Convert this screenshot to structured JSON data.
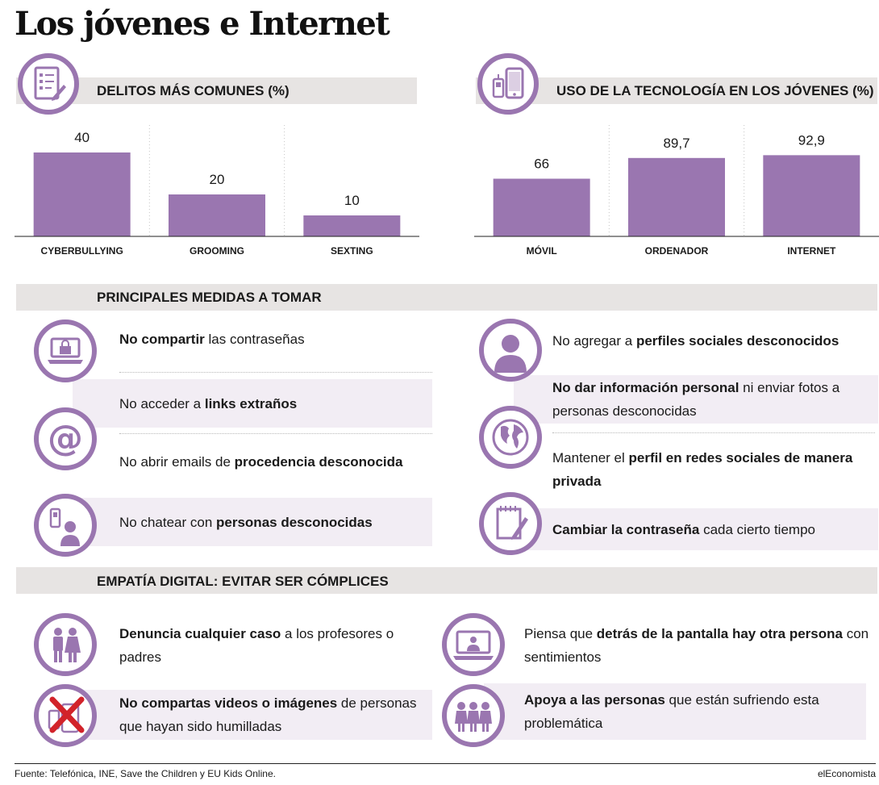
{
  "title": "Los jóvenes e Internet",
  "accent_color": "#9a76b0",
  "band_color": "#e7e4e3",
  "shade_color": "#f2edf4",
  "sections": {
    "delitos": "DELITOS MÁS COMUNES (%)",
    "uso": "USO DE LA TECNOLOGÍA EN LOS JÓVENES (%)",
    "medidas": "PRINCIPALES MEDIDAS A TOMAR",
    "empatia": "EMPATÍA DIGITAL: EVITAR SER CÓMPLICES"
  },
  "chart_data": [
    {
      "type": "bar",
      "title": "DELITOS MÁS COMUNES (%)",
      "categories": [
        "CYBERBULLYING",
        "GROOMING",
        "SEXTING"
      ],
      "values": [
        40,
        20,
        10
      ],
      "value_labels": [
        "40",
        "20",
        "10"
      ],
      "ylim": [
        0,
        50
      ],
      "grid": false
    },
    {
      "type": "bar",
      "title": "USO DE LA TECNOLOGÍA EN LOS JÓVENES (%)",
      "categories": [
        "MÓVIL",
        "ORDENADOR",
        "INTERNET"
      ],
      "values": [
        66,
        89.7,
        92.9
      ],
      "value_labels": [
        "66",
        "89,7",
        "92,9"
      ],
      "ylim": [
        0,
        120
      ],
      "grid": false
    }
  ],
  "medidas": {
    "left": [
      {
        "parts": [
          {
            "b": "No compartir"
          },
          {
            "t": " las contraseñas"
          }
        ]
      },
      {
        "parts": [
          {
            "t": "No acceder a "
          },
          {
            "b": "links extraños"
          }
        ]
      },
      {
        "parts": [
          {
            "t": "No abrir emails de "
          },
          {
            "b": "procedencia desconocida"
          }
        ]
      },
      {
        "parts": [
          {
            "t": "No chatear con "
          },
          {
            "b": "personas desconocidas"
          }
        ]
      }
    ],
    "right": [
      {
        "parts": [
          {
            "t": "No agregar a "
          },
          {
            "b": "perfiles sociales desconocidos"
          }
        ]
      },
      {
        "parts": [
          {
            "b": "No dar información personal"
          },
          {
            "t": " ni enviar fotos a personas desconocidas"
          }
        ]
      },
      {
        "parts": [
          {
            "t": "Mantener el "
          },
          {
            "b": "perfil en redes sociales de manera privada"
          }
        ]
      },
      {
        "parts": [
          {
            "b": "Cambiar la contraseña"
          },
          {
            "t": " cada cierto tiempo"
          }
        ]
      }
    ]
  },
  "empatia": {
    "left": [
      {
        "parts": [
          {
            "b": "Denuncia cualquier caso"
          },
          {
            "t": " a los profesores o padres"
          }
        ]
      },
      {
        "parts": [
          {
            "b": "No compartas videos o imágenes"
          },
          {
            "t": " de personas que hayan sido humilladas"
          }
        ]
      }
    ],
    "right": [
      {
        "parts": [
          {
            "t": "Piensa que "
          },
          {
            "b": "detrás de la pantalla hay otra persona"
          },
          {
            "t": " con sentimientos"
          }
        ]
      },
      {
        "parts": [
          {
            "b": "Apoya a las personas"
          },
          {
            "t": " que están sufriendo esta problemática"
          }
        ]
      }
    ]
  },
  "footer": {
    "source": "Fuente: Telefónica, INE, Save the Children y EU Kids Online.",
    "brand": "elEconomista"
  }
}
